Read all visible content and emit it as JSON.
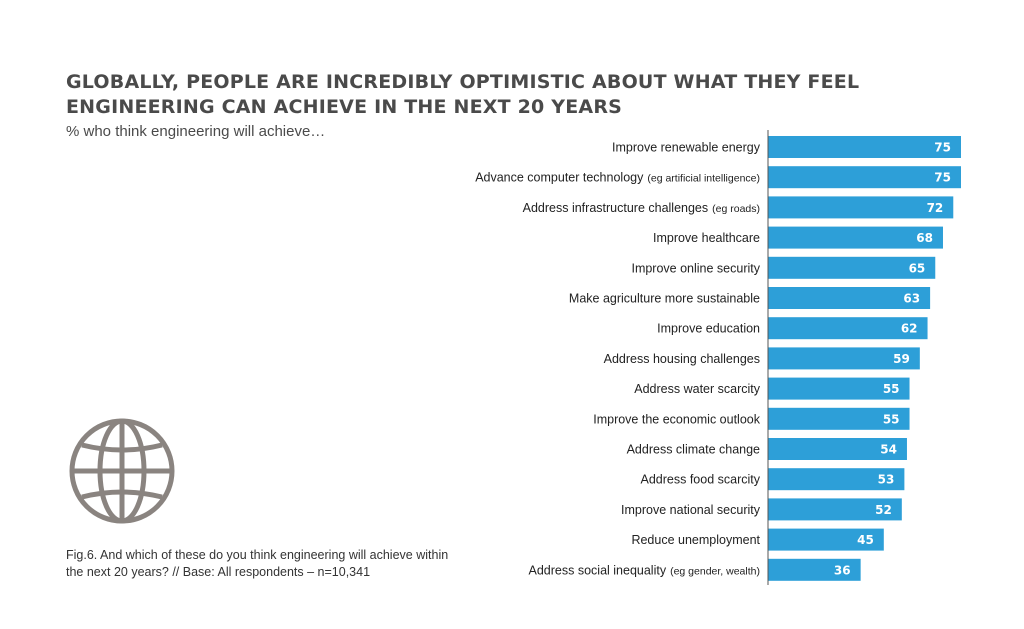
{
  "header": {
    "title": "GLOBALLY, PEOPLE ARE INCREDIBLY OPTIMISTIC ABOUT WHAT THEY FEEL ENGINEERING CAN ACHIEVE IN THE NEXT 20 YEARS",
    "subtitle": "% who think engineering will achieve…"
  },
  "footnote": "Fig.6. And which of these do you think engineering will achieve within the next 20 years? // Base: All respondents – n=10,341",
  "icon": "globe-icon",
  "colors": {
    "bar": "#2d9fd8",
    "axis": "#555555",
    "globe": "#8a8480"
  },
  "chart_data": {
    "type": "bar",
    "orientation": "horizontal",
    "categories": [
      {
        "main": "Improve renewable energy",
        "note": ""
      },
      {
        "main": "Advance computer technology",
        "note": "(eg artificial intelligence)"
      },
      {
        "main": "Address infrastructure challenges",
        "note": "(eg roads)"
      },
      {
        "main": "Improve healthcare",
        "note": ""
      },
      {
        "main": "Improve online security",
        "note": ""
      },
      {
        "main": "Make agriculture more sustainable",
        "note": ""
      },
      {
        "main": "Improve education",
        "note": ""
      },
      {
        "main": "Address housing challenges",
        "note": ""
      },
      {
        "main": "Address water scarcity",
        "note": ""
      },
      {
        "main": "Improve the economic outlook",
        "note": ""
      },
      {
        "main": "Address climate change",
        "note": ""
      },
      {
        "main": "Address food scarcity",
        "note": ""
      },
      {
        "main": "Improve national security",
        "note": ""
      },
      {
        "main": "Reduce unemployment",
        "note": ""
      },
      {
        "main": "Address social inequality",
        "note": "(eg gender, wealth)"
      }
    ],
    "values": [
      75,
      75,
      72,
      68,
      65,
      63,
      62,
      59,
      55,
      55,
      54,
      53,
      52,
      45,
      36
    ],
    "value_labels": [
      "75",
      "75",
      "72",
      "68",
      "65",
      "63",
      "62",
      "59",
      "55",
      "55",
      "54",
      "53",
      "52",
      "45",
      "36"
    ],
    "xlim": [
      0,
      75
    ],
    "grid": false,
    "legend": "none"
  }
}
